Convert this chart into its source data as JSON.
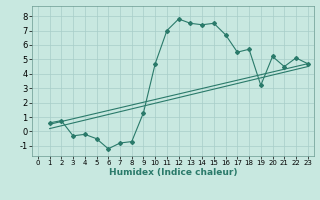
{
  "xlabel": "Humidex (Indice chaleur)",
  "xlim": [
    -0.5,
    23.5
  ],
  "ylim": [
    -1.7,
    8.7
  ],
  "xticks": [
    0,
    1,
    2,
    3,
    4,
    5,
    6,
    7,
    8,
    9,
    10,
    11,
    12,
    13,
    14,
    15,
    16,
    17,
    18,
    19,
    20,
    21,
    22,
    23
  ],
  "yticks": [
    -1,
    0,
    1,
    2,
    3,
    4,
    5,
    6,
    7,
    8
  ],
  "bg_color": "#c8e8e0",
  "line_color": "#2a7a6a",
  "grid_color": "#a8cec8",
  "curve1_x": [
    1,
    2,
    3,
    4,
    5,
    6,
    7,
    8,
    9,
    10,
    11,
    12,
    13,
    14,
    15,
    16,
    17,
    18,
    19,
    20,
    21,
    22,
    23
  ],
  "curve1_y": [
    0.6,
    0.75,
    -0.3,
    -0.2,
    -0.5,
    -1.2,
    -0.8,
    -0.7,
    1.3,
    4.7,
    7.0,
    7.8,
    7.5,
    7.4,
    7.5,
    6.7,
    5.5,
    5.7,
    3.2,
    5.2,
    4.5,
    5.1,
    4.7
  ],
  "curve2_x": [
    1,
    23
  ],
  "curve2_y": [
    0.5,
    4.7
  ],
  "curve3_x": [
    1,
    23
  ],
  "curve3_y": [
    0.2,
    4.5
  ]
}
